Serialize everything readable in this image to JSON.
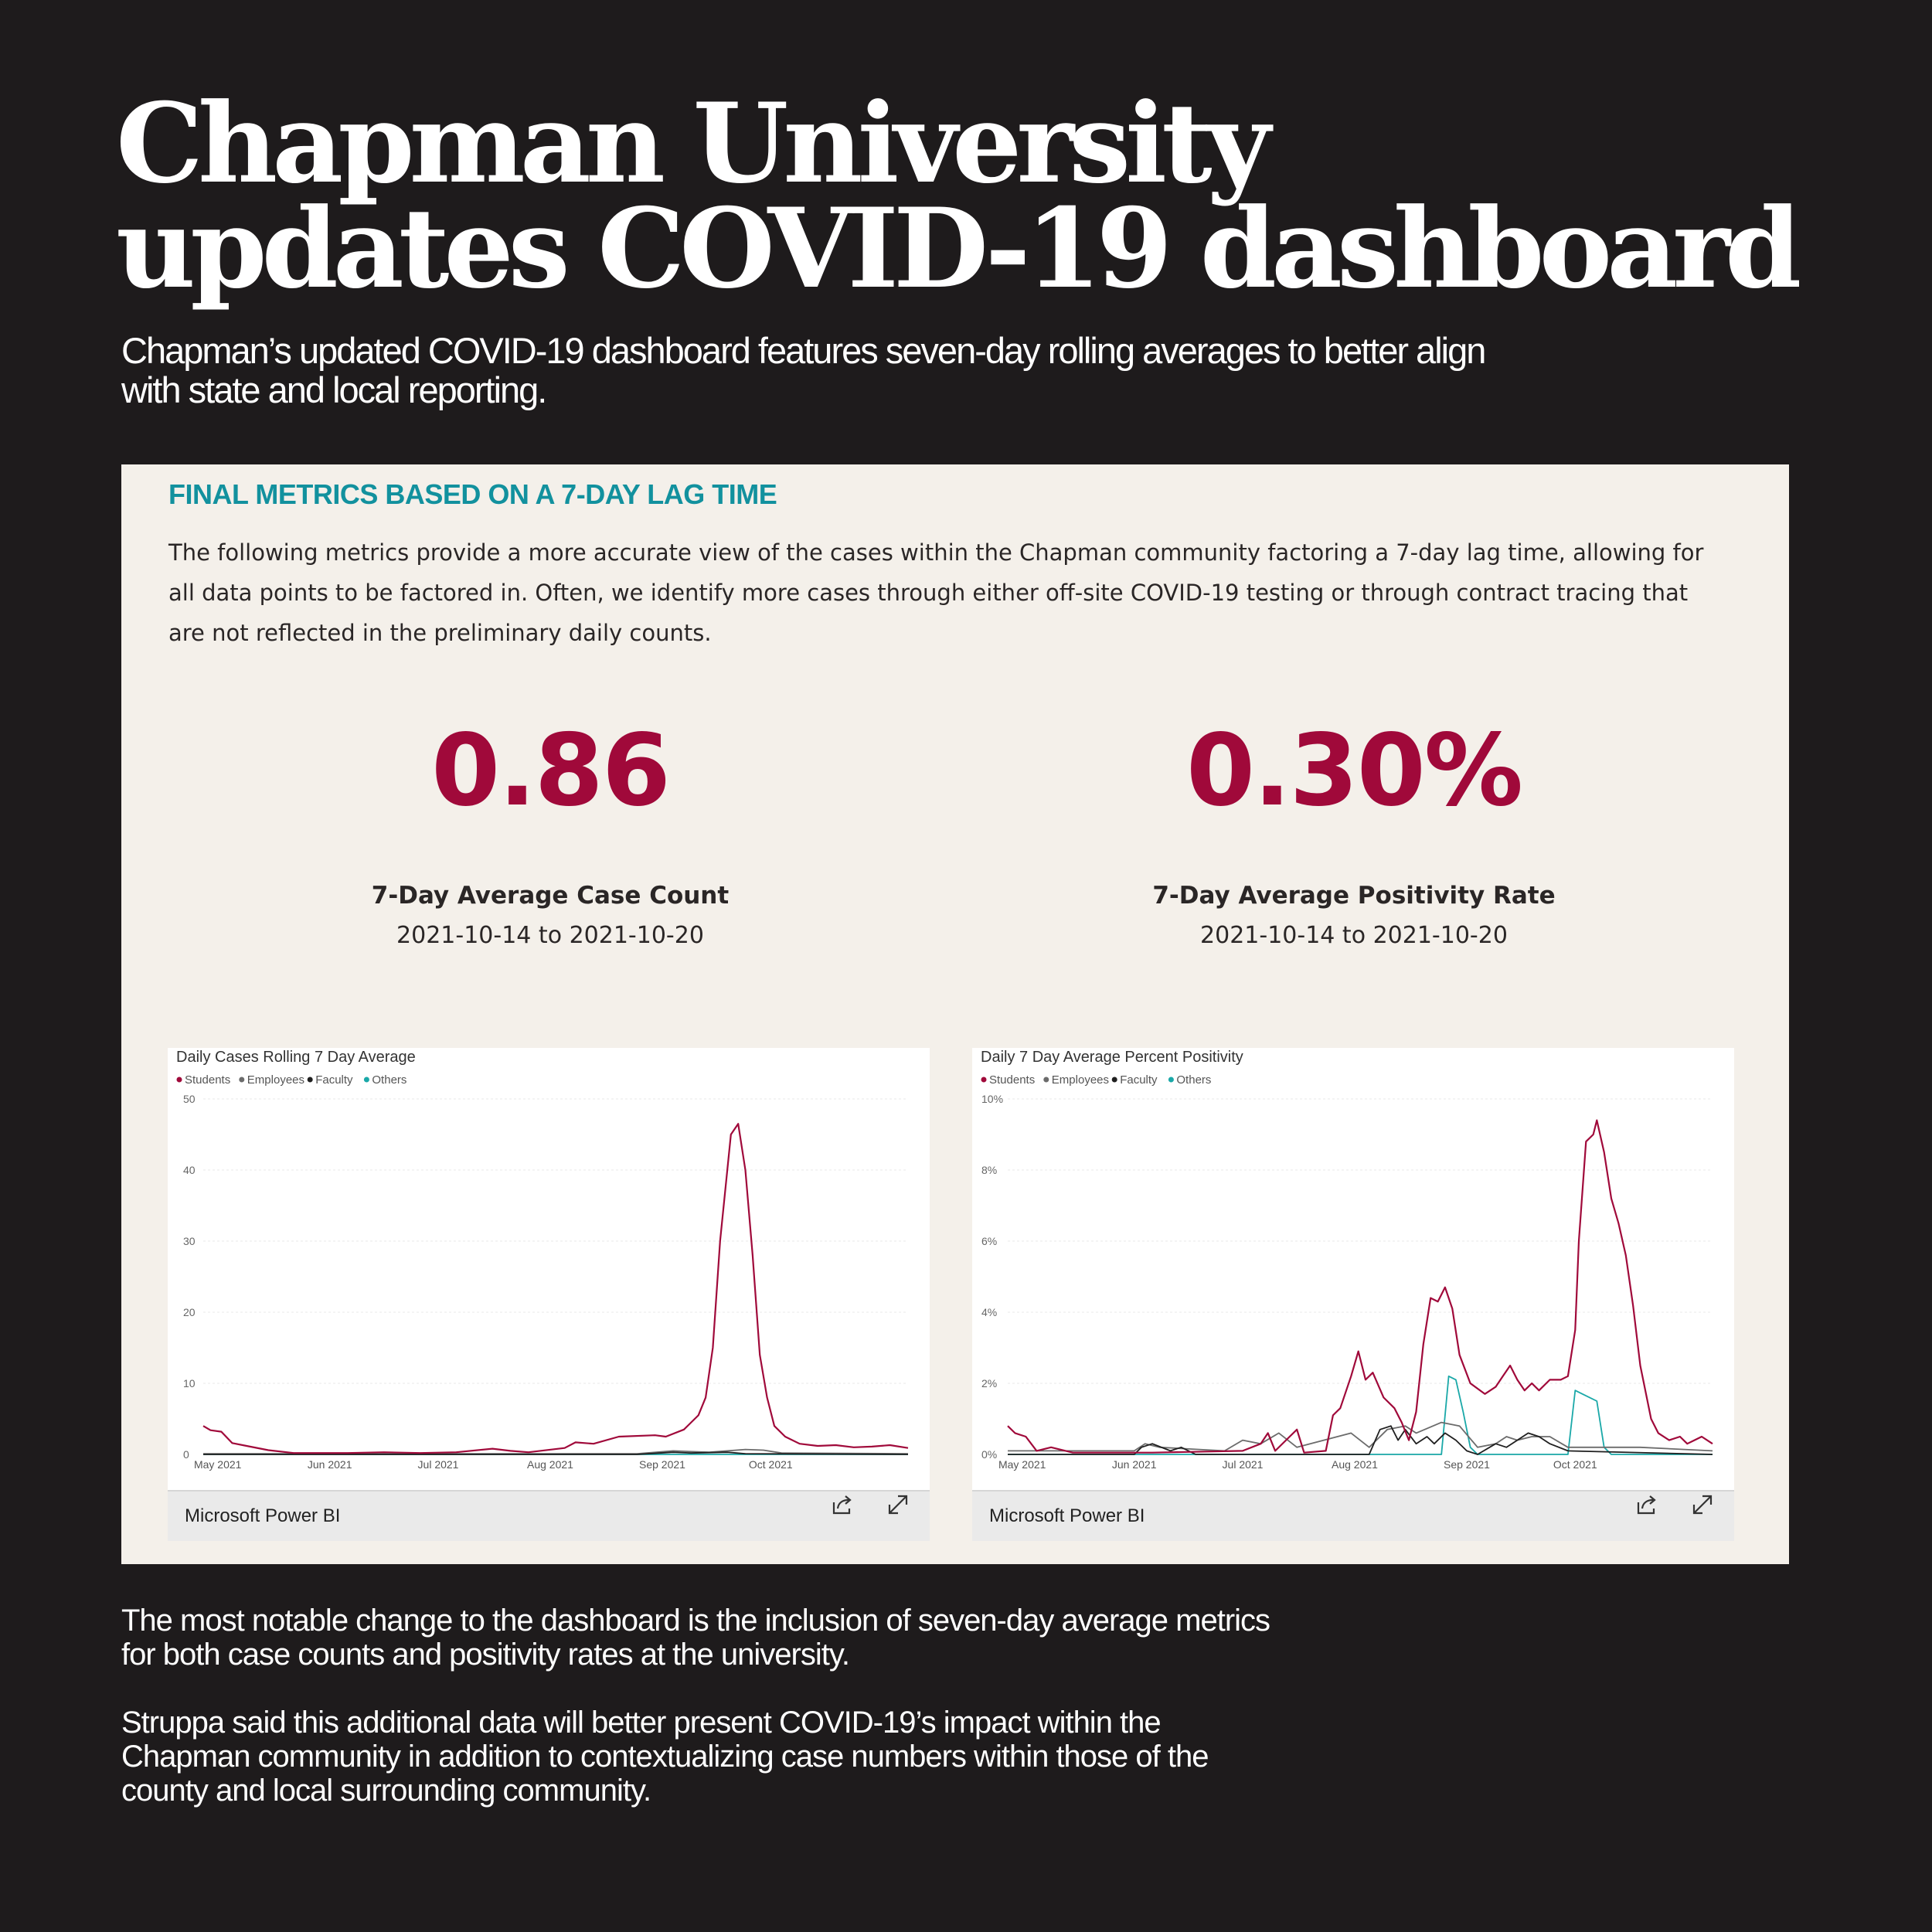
{
  "headline": {
    "line1": "Chapman University",
    "line2": "updates COVID-19 dashboard"
  },
  "subhead": "Chapman’s updated COVID-19 dashboard features seven-day rolling averages to better align with state and local reporting.",
  "panel": {
    "heading": "FINAL METRICS BASED ON A 7-DAY LAG TIME",
    "description": "The following metrics provide a more accurate view of the cases within the Chapman community factoring a 7-day lag time, allowing for all data points to be factored in. Often, we identify more cases through either off-site COVID-19 testing or through contract tracing that are not reflected in the preliminary daily counts.",
    "metrics": [
      {
        "value": "0.86",
        "label": "7-Day Average Case Count",
        "range": "2021-10-14 to 2021-10-20"
      },
      {
        "value": "0.30%",
        "label": "7-Day Average Positivity Rate",
        "range": "2021-10-14 to 2021-10-20"
      }
    ],
    "footer_label": "Microsoft Power BI",
    "colors": {
      "students": "#a0093a",
      "employees": "#6b6b6b",
      "faculty": "#1f1f1f",
      "others": "#1aa8a8"
    }
  },
  "body": {
    "para1": "The most notable change to the dashboard is the inclusion of seven-day average metrics for both case counts and positivity rates at the university.",
    "para2": "Struppa said this additional data will better present COVID-19’s impact within the Chapman community in addition to contextualizing case numbers within those of the county and local surrounding community."
  },
  "chart_data": [
    {
      "type": "line",
      "title": "Daily Cases Rolling 7 Day Average",
      "legend": [
        "Students",
        "Employees",
        "Faculty",
        "Others"
      ],
      "x_ticks": [
        "May 2021",
        "Jun 2021",
        "Jul 2021",
        "Aug 2021",
        "Sep 2021",
        "Oct 2021"
      ],
      "y_ticks": [
        "0",
        "10",
        "20",
        "30",
        "40",
        "50"
      ],
      "ylim": [
        0,
        50
      ],
      "x_range_days": [
        0,
        195
      ],
      "series": [
        {
          "name": "Students",
          "points": [
            [
              0,
              4
            ],
            [
              2,
              3.4
            ],
            [
              5,
              3.2
            ],
            [
              8,
              1.6
            ],
            [
              12,
              1.2
            ],
            [
              18,
              0.6
            ],
            [
              25,
              0.2
            ],
            [
              40,
              0.2
            ],
            [
              50,
              0.3
            ],
            [
              60,
              0.2
            ],
            [
              70,
              0.3
            ],
            [
              80,
              0.8
            ],
            [
              85,
              0.5
            ],
            [
              90,
              0.3
            ],
            [
              100,
              0.9
            ],
            [
              103,
              1.7
            ],
            [
              108,
              1.5
            ],
            [
              115,
              2.5
            ],
            [
              125,
              2.7
            ],
            [
              128,
              2.5
            ],
            [
              133,
              3.5
            ],
            [
              137,
              5.5
            ],
            [
              139,
              8
            ],
            [
              141,
              15
            ],
            [
              143,
              30
            ],
            [
              146,
              45
            ],
            [
              148,
              46.5
            ],
            [
              150,
              40
            ],
            [
              152,
              28
            ],
            [
              154,
              14
            ],
            [
              156,
              8
            ],
            [
              158,
              4
            ],
            [
              161,
              2.5
            ],
            [
              165,
              1.5
            ],
            [
              170,
              1.2
            ],
            [
              175,
              1.3
            ],
            [
              180,
              1
            ],
            [
              185,
              1.1
            ],
            [
              190,
              1.3
            ],
            [
              195,
              0.9
            ]
          ]
        },
        {
          "name": "Employees",
          "points": [
            [
              0,
              0.1
            ],
            [
              60,
              0.1
            ],
            [
              90,
              0.1
            ],
            [
              120,
              0.1
            ],
            [
              130,
              0.5
            ],
            [
              140,
              0.3
            ],
            [
              150,
              0.7
            ],
            [
              155,
              0.6
            ],
            [
              160,
              0.2
            ],
            [
              195,
              0.1
            ]
          ]
        },
        {
          "name": "Faculty",
          "points": [
            [
              0,
              0
            ],
            [
              100,
              0
            ],
            [
              120,
              0
            ],
            [
              130,
              0.3
            ],
            [
              135,
              0.2
            ],
            [
              145,
              0.3
            ],
            [
              150,
              0.1
            ],
            [
              195,
              0
            ]
          ]
        },
        {
          "name": "Others",
          "points": [
            [
              0,
              0
            ],
            [
              195,
              0
            ]
          ]
        }
      ]
    },
    {
      "type": "line",
      "title": "Daily 7 Day Average Percent Positivity",
      "legend": [
        "Students",
        "Employees",
        "Faculty",
        "Others"
      ],
      "x_ticks": [
        "May 2021",
        "Jun 2021",
        "Jul 2021",
        "Aug 2021",
        "Sep 2021",
        "Oct 2021"
      ],
      "y_ticks": [
        "0%",
        "2%",
        "4%",
        "6%",
        "8%",
        "10%"
      ],
      "ylim": [
        0,
        10
      ],
      "x_range_days": [
        0,
        195
      ],
      "series": [
        {
          "name": "Students",
          "points": [
            [
              0,
              0.8
            ],
            [
              2,
              0.6
            ],
            [
              5,
              0.5
            ],
            [
              8,
              0.1
            ],
            [
              12,
              0.2
            ],
            [
              18,
              0.05
            ],
            [
              40,
              0.05
            ],
            [
              65,
              0.1
            ],
            [
              70,
              0.3
            ],
            [
              72,
              0.6
            ],
            [
              74,
              0.1
            ],
            [
              78,
              0.5
            ],
            [
              80,
              0.7
            ],
            [
              82,
              0.05
            ],
            [
              88,
              0.1
            ],
            [
              90,
              1.1
            ],
            [
              92,
              1.3
            ],
            [
              95,
              2.2
            ],
            [
              97,
              2.9
            ],
            [
              99,
              2.1
            ],
            [
              101,
              2.3
            ],
            [
              104,
              1.6
            ],
            [
              107,
              1.3
            ],
            [
              109,
              0.9
            ],
            [
              111,
              0.4
            ],
            [
              113,
              1.2
            ],
            [
              115,
              3.1
            ],
            [
              117,
              4.4
            ],
            [
              119,
              4.3
            ],
            [
              121,
              4.7
            ],
            [
              123,
              4.1
            ],
            [
              125,
              2.8
            ],
            [
              128,
              2
            ],
            [
              132,
              1.7
            ],
            [
              135,
              1.9
            ],
            [
              137,
              2.2
            ],
            [
              139,
              2.5
            ],
            [
              141,
              2.1
            ],
            [
              143,
              1.8
            ],
            [
              145,
              2
            ],
            [
              147,
              1.8
            ],
            [
              150,
              2.1
            ],
            [
              153,
              2.1
            ],
            [
              155,
              2.2
            ],
            [
              157,
              3.5
            ],
            [
              158,
              6
            ],
            [
              160,
              8.8
            ],
            [
              162,
              9
            ],
            [
              163,
              9.4
            ],
            [
              165,
              8.5
            ],
            [
              167,
              7.2
            ],
            [
              169,
              6.5
            ],
            [
              171,
              5.6
            ],
            [
              173,
              4.2
            ],
            [
              175,
              2.5
            ],
            [
              178,
              1
            ],
            [
              180,
              0.6
            ],
            [
              183,
              0.4
            ],
            [
              186,
              0.5
            ],
            [
              188,
              0.3
            ],
            [
              190,
              0.4
            ],
            [
              192,
              0.5
            ],
            [
              195,
              0.3
            ]
          ]
        },
        {
          "name": "Employees",
          "points": [
            [
              0,
              0.1
            ],
            [
              35,
              0.1
            ],
            [
              38,
              0.3
            ],
            [
              42,
              0.2
            ],
            [
              60,
              0.1
            ],
            [
              65,
              0.4
            ],
            [
              70,
              0.3
            ],
            [
              75,
              0.6
            ],
            [
              80,
              0.2
            ],
            [
              95,
              0.6
            ],
            [
              100,
              0.2
            ],
            [
              105,
              0.7
            ],
            [
              110,
              0.8
            ],
            [
              113,
              0.6
            ],
            [
              120,
              0.9
            ],
            [
              125,
              0.8
            ],
            [
              130,
              0.2
            ],
            [
              135,
              0.3
            ],
            [
              138,
              0.5
            ],
            [
              141,
              0.4
            ],
            [
              145,
              0.5
            ],
            [
              150,
              0.5
            ],
            [
              155,
              0.2
            ],
            [
              160,
              0.2
            ],
            [
              175,
              0.2
            ],
            [
              195,
              0.1
            ]
          ]
        },
        {
          "name": "Faculty",
          "points": [
            [
              0,
              0
            ],
            [
              35,
              0
            ],
            [
              37,
              0.2
            ],
            [
              40,
              0.3
            ],
            [
              45,
              0.1
            ],
            [
              48,
              0.2
            ],
            [
              52,
              0
            ],
            [
              100,
              0
            ],
            [
              103,
              0.7
            ],
            [
              106,
              0.8
            ],
            [
              108,
              0.4
            ],
            [
              110,
              0.7
            ],
            [
              113,
              0.3
            ],
            [
              116,
              0.5
            ],
            [
              118,
              0.3
            ],
            [
              121,
              0.6
            ],
            [
              124,
              0.4
            ],
            [
              127,
              0.1
            ],
            [
              130,
              0
            ],
            [
              135,
              0.3
            ],
            [
              138,
              0.2
            ],
            [
              141,
              0.4
            ],
            [
              144,
              0.6
            ],
            [
              147,
              0.5
            ],
            [
              150,
              0.3
            ],
            [
              155,
              0.1
            ],
            [
              195,
              0
            ]
          ]
        },
        {
          "name": "Others",
          "points": [
            [
              0,
              0
            ],
            [
              120,
              0
            ],
            [
              122,
              2.2
            ],
            [
              124,
              2.1
            ],
            [
              126,
              1.2
            ],
            [
              128,
              0.2
            ],
            [
              130,
              0
            ],
            [
              155,
              0
            ],
            [
              157,
              1.8
            ],
            [
              159,
              1.7
            ],
            [
              161,
              1.6
            ],
            [
              163,
              1.5
            ],
            [
              165,
              0.2
            ],
            [
              167,
              0
            ],
            [
              195,
              0
            ]
          ]
        }
      ]
    }
  ]
}
